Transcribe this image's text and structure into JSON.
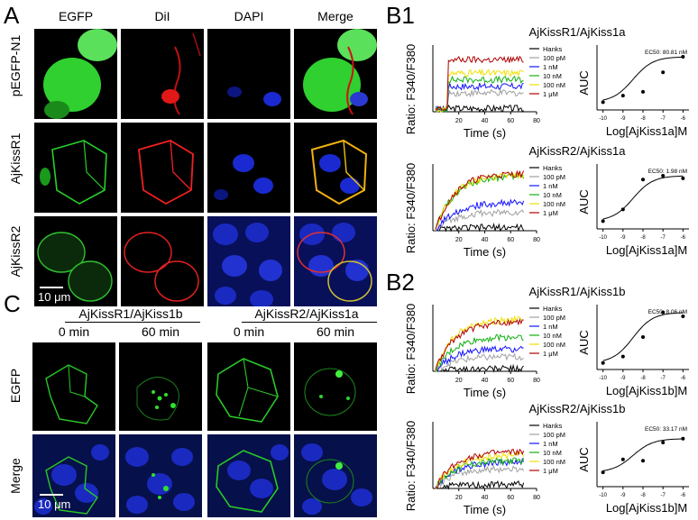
{
  "panel_letters": {
    "a": "A",
    "b1": "B1",
    "b2": "B2",
    "c": "C"
  },
  "panel_a": {
    "columns": [
      "EGFP",
      "DiI",
      "DAPI",
      "Merge"
    ],
    "rows": [
      "pEGFP-N1",
      "AjKissR1",
      "AjKissR2"
    ],
    "scale_bar": "10 μm"
  },
  "panel_c": {
    "groups": [
      "AjKissR1/AjKiss1b",
      "AjKissR2/AjKiss1a"
    ],
    "times": [
      "0 min",
      "60 min",
      "0 min",
      "60 min"
    ],
    "rows": [
      "EGFP",
      "Merge"
    ],
    "scale_bar": "10 μm"
  },
  "colors": {
    "hanks": "#000000",
    "p100pm": "#a0a0a0",
    "n1": "#1414ff",
    "n10": "#10b010",
    "n100": "#f0e000",
    "um1": "#b00000",
    "egfp": "#22cc22",
    "dii": "#ff2020",
    "dapi": "#1020e0"
  },
  "chart_data": [
    {
      "type": "line",
      "title": "AjKissR1/AjKiss1a",
      "xlabel": "Time (s)",
      "ylabel": "Ratio: F340/F380",
      "xticks": [
        "20",
        "40",
        "60",
        "80"
      ],
      "legend": [
        "Hanks",
        "100 pM",
        "1 nM",
        "10 nM",
        "100 nM",
        "1 μM"
      ],
      "xlim": [
        0,
        80
      ],
      "series": [
        {
          "name": "Hanks",
          "level": 0.05,
          "onset": 12
        },
        {
          "name": "100 pM",
          "level": 0.28,
          "onset": 12
        },
        {
          "name": "1 nM",
          "level": 0.38,
          "onset": 12
        },
        {
          "name": "10 nM",
          "level": 0.48,
          "onset": 12
        },
        {
          "name": "100 nM",
          "level": 0.58,
          "onset": 12
        },
        {
          "name": "1 μM",
          "level": 0.78,
          "onset": 12
        }
      ]
    },
    {
      "type": "scatter",
      "xlabel": "Log[AjKiss1a]M",
      "ylabel": "AUC",
      "annotation": "EC50: 80.81 nM",
      "xticks": [
        "-10",
        "-9",
        "-8",
        "-7",
        "-6"
      ],
      "x": [
        -10,
        -9,
        -8,
        -7,
        -6
      ],
      "y": [
        0.12,
        0.22,
        0.28,
        0.58,
        0.82
      ],
      "xlim": [
        -10.3,
        -5.7
      ]
    },
    {
      "type": "line",
      "title": "AjKissR2/AjKiss1a",
      "xlabel": "Time (s)",
      "ylabel": "Ratio: F340/F380",
      "xticks": [
        "20",
        "40",
        "60",
        "80"
      ],
      "legend": [
        "Hanks",
        "100 pM",
        "1 nM",
        "10 nM",
        "100 nM",
        "1 μM"
      ],
      "xlim": [
        0,
        80
      ],
      "series": [
        {
          "name": "Hanks",
          "level": 0.05,
          "onset": 0
        },
        {
          "name": "100 pM",
          "level": 0.28,
          "onset": 0
        },
        {
          "name": "1 nM",
          "level": 0.42,
          "onset": 0
        },
        {
          "name": "10 nM",
          "level": 0.82,
          "onset": 0
        },
        {
          "name": "100 nM",
          "level": 0.84,
          "onset": 0
        },
        {
          "name": "1 μM",
          "level": 0.86,
          "onset": 0
        }
      ]
    },
    {
      "type": "scatter",
      "xlabel": "Log[AjKiss1a]M",
      "ylabel": "AUC",
      "annotation": "EC50: 1.98 nM",
      "xticks": [
        "-10",
        "-9",
        "-8",
        "-7",
        "-6"
      ],
      "x": [
        -10,
        -9,
        -8,
        -7,
        -6
      ],
      "y": [
        0.12,
        0.3,
        0.76,
        0.82,
        0.78
      ],
      "xlim": [
        -10.3,
        -5.7
      ]
    },
    {
      "type": "line",
      "title": "AjKissR1/AjKiss1b",
      "xlabel": "Time (s)",
      "ylabel": "Ratio: F340/F380",
      "xticks": [
        "20",
        "40",
        "60",
        "80"
      ],
      "legend": [
        "Hanks",
        "100 pM",
        "1 nM",
        "10 nM",
        "100 nM",
        "1 μM"
      ],
      "xlim": [
        0,
        80
      ],
      "series": [
        {
          "name": "Hanks",
          "level": 0.04,
          "onset": 0
        },
        {
          "name": "100 pM",
          "level": 0.22,
          "onset": 0
        },
        {
          "name": "1 nM",
          "level": 0.34,
          "onset": 0
        },
        {
          "name": "10 nM",
          "level": 0.52,
          "onset": 0
        },
        {
          "name": "100 nM",
          "level": 0.78,
          "onset": 0
        },
        {
          "name": "1 μM",
          "level": 0.74,
          "onset": 0
        }
      ]
    },
    {
      "type": "scatter",
      "xlabel": "Log[AjKiss1b]M",
      "ylabel": "AUC",
      "annotation": "EC50: 8.06 nM",
      "xticks": [
        "-10",
        "-9",
        "-8",
        "-7",
        "-6"
      ],
      "x": [
        -10,
        -9,
        -8,
        -7,
        -6
      ],
      "y": [
        0.1,
        0.2,
        0.5,
        0.88,
        0.82
      ],
      "xlim": [
        -10.3,
        -5.7
      ]
    },
    {
      "type": "line",
      "title": "AjKissR2/AjKiss1b",
      "xlabel": "Time (s)",
      "ylabel": "Ratio: F340/F380",
      "xticks": [
        "20",
        "40",
        "60",
        "80"
      ],
      "legend": [
        "Hanks",
        "100 pM",
        "1 nM",
        "10 nM",
        "100 nM",
        "1 μM"
      ],
      "xlim": [
        0,
        80
      ],
      "series": [
        {
          "name": "Hanks",
          "level": 0.06,
          "onset": 0
        },
        {
          "name": "100 pM",
          "level": 0.3,
          "onset": 0
        },
        {
          "name": "1 nM",
          "level": 0.4,
          "onset": 0
        },
        {
          "name": "10 nM",
          "level": 0.42,
          "onset": 0
        },
        {
          "name": "100 nM",
          "level": 0.5,
          "onset": 0
        },
        {
          "name": "1 μM",
          "level": 0.55,
          "onset": 0
        }
      ]
    },
    {
      "type": "scatter",
      "xlabel": "Log[AjKiss1b]M",
      "ylabel": "AUC",
      "annotation": "EC50: 33.17 nM",
      "xticks": [
        "-10",
        "-9",
        "-8",
        "-7",
        "-6"
      ],
      "x": [
        -10,
        -9,
        -8,
        -7,
        -6
      ],
      "y": [
        0.22,
        0.42,
        0.4,
        0.68,
        0.74
      ],
      "xlim": [
        -10.3,
        -5.7
      ]
    }
  ]
}
